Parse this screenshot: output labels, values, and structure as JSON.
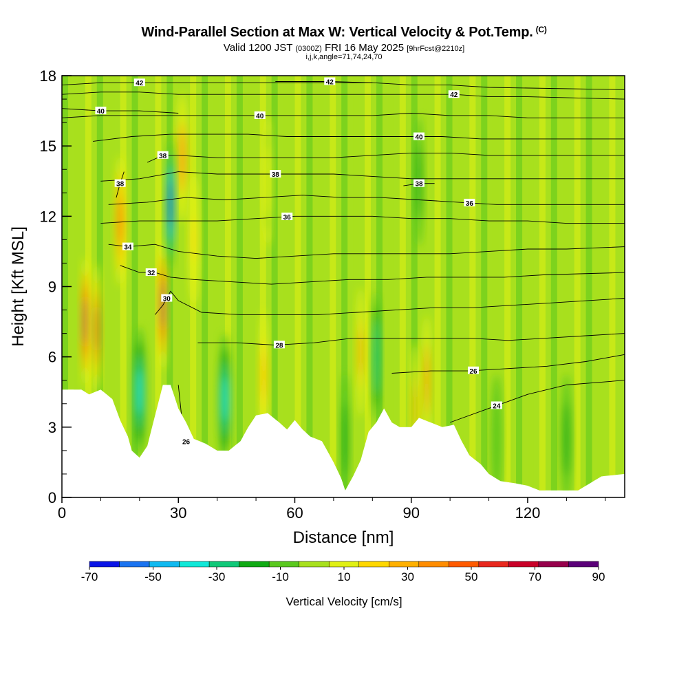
{
  "title": {
    "main": "Wind-Parallel Section at Max W: Vertical Velocity & Pot.Temp.",
    "copyright": "(C)",
    "valid_prefix": "Valid 1200 JST",
    "valid_utc": "(0300Z)",
    "valid_date": "FRI 16 May 2025",
    "forecast": "[9hrFcst@2210z]",
    "indices": "i,j,k,angle=71,74,24,70"
  },
  "chart_data": {
    "type": "heatmap",
    "xlabel": "Distance [nm]",
    "ylabel": "Height [Kft MSL]",
    "xlim": [
      0,
      145
    ],
    "ylim": [
      0,
      18
    ],
    "x_ticks": [
      0,
      30,
      60,
      90,
      120
    ],
    "y_ticks": [
      0,
      3,
      6,
      9,
      12,
      15,
      18
    ],
    "colorbar": {
      "label": "Vertical Velocity [cm/s]",
      "tick_labels": [
        "-70",
        "-50",
        "-30",
        "-10",
        "10",
        "30",
        "50",
        "70",
        "90"
      ],
      "levels": [
        -70,
        -60,
        -50,
        -40,
        -30,
        -20,
        -10,
        0,
        10,
        20,
        30,
        40,
        50,
        60,
        70,
        80,
        90
      ],
      "colors": [
        "#0a14e6",
        "#1a73f0",
        "#10b9f0",
        "#10e8d8",
        "#10c878",
        "#10aa14",
        "#5ac81e",
        "#a8e01e",
        "#e0f014",
        "#ffd700",
        "#ffb000",
        "#ff8c00",
        "#ff5a00",
        "#e8281e",
        "#c80028",
        "#96004b",
        "#5a0078"
      ]
    },
    "terrain_height_kft": [
      [
        0,
        4.6
      ],
      [
        5,
        4.6
      ],
      [
        7,
        4.4
      ],
      [
        10,
        4.6
      ],
      [
        13,
        4.2
      ],
      [
        15,
        3.3
      ],
      [
        17,
        2.6
      ],
      [
        18,
        2.0
      ],
      [
        20,
        1.7
      ],
      [
        22,
        2.2
      ],
      [
        24,
        3.5
      ],
      [
        26,
        4.8
      ],
      [
        28,
        4.8
      ],
      [
        30,
        3.8
      ],
      [
        32,
        3.2
      ],
      [
        34,
        2.5
      ],
      [
        37,
        2.3
      ],
      [
        40,
        2.0
      ],
      [
        43,
        2.0
      ],
      [
        46,
        2.4
      ],
      [
        48,
        3.0
      ],
      [
        50,
        3.5
      ],
      [
        53,
        3.6
      ],
      [
        56,
        3.2
      ],
      [
        58,
        2.9
      ],
      [
        60,
        3.3
      ],
      [
        62,
        2.9
      ],
      [
        64,
        2.6
      ],
      [
        67,
        2.4
      ],
      [
        70,
        1.5
      ],
      [
        72,
        0.8
      ],
      [
        73,
        0.3
      ],
      [
        75,
        0.9
      ],
      [
        77,
        1.6
      ],
      [
        79,
        2.8
      ],
      [
        81,
        3.2
      ],
      [
        83,
        3.8
      ],
      [
        85,
        3.2
      ],
      [
        87,
        3.0
      ],
      [
        90,
        3.0
      ],
      [
        92,
        3.4
      ],
      [
        95,
        3.2
      ],
      [
        98,
        3.0
      ],
      [
        101,
        3.1
      ],
      [
        103,
        2.4
      ],
      [
        105,
        1.8
      ],
      [
        108,
        1.4
      ],
      [
        110,
        1.0
      ],
      [
        113,
        0.7
      ],
      [
        117,
        0.6
      ],
      [
        120,
        0.5
      ],
      [
        123,
        0.3
      ],
      [
        127,
        0.3
      ],
      [
        130,
        0.3
      ],
      [
        133,
        0.3
      ],
      [
        136,
        0.6
      ],
      [
        139,
        0.9
      ],
      [
        145,
        1.0
      ]
    ],
    "velocity_cells": [
      {
        "x": 6,
        "y": 7.5,
        "w": 0.6,
        "v": 85
      },
      {
        "x": 9,
        "y": 7.2,
        "w": 0.5,
        "v": 70
      },
      {
        "x": 15,
        "y": 11.8,
        "w": 0.8,
        "v": 55
      },
      {
        "x": 26,
        "y": 8.2,
        "w": 0.6,
        "v": 80
      },
      {
        "x": 31,
        "y": 14.5,
        "w": 0.9,
        "v": 45
      },
      {
        "x": 34,
        "y": 11.0,
        "w": 0.8,
        "v": 25
      },
      {
        "x": 28,
        "y": 12.5,
        "w": 0.6,
        "v": -65
      },
      {
        "x": 20,
        "y": 4.5,
        "w": 1.0,
        "v": -40
      },
      {
        "x": 42,
        "y": 4.2,
        "w": 1.0,
        "v": -35
      },
      {
        "x": 52,
        "y": 5.2,
        "w": 0.7,
        "v": 30
      },
      {
        "x": 53,
        "y": 13.5,
        "w": 0.6,
        "v": 15
      },
      {
        "x": 73,
        "y": 2.5,
        "w": 0.5,
        "v": -15
      },
      {
        "x": 77,
        "y": 6.2,
        "w": 0.6,
        "v": 40
      },
      {
        "x": 81,
        "y": 6.0,
        "w": 0.6,
        "v": -30
      },
      {
        "x": 94,
        "y": 5.0,
        "w": 0.6,
        "v": 45
      },
      {
        "x": 91,
        "y": 3.8,
        "w": 0.5,
        "v": 30
      },
      {
        "x": 92,
        "y": 13.5,
        "w": 0.5,
        "v": -15
      },
      {
        "x": 112,
        "y": 2.5,
        "w": 0.8,
        "v": -10
      },
      {
        "x": 130,
        "y": 2.5,
        "w": 0.8,
        "v": -20
      }
    ],
    "isentropes": [
      {
        "label": "24",
        "label_x": 112,
        "points": [
          [
            100,
            3.2
          ],
          [
            110,
            3.8
          ],
          [
            120,
            4.4
          ],
          [
            130,
            4.8
          ],
          [
            145,
            5.0
          ]
        ]
      },
      {
        "label": "26",
        "label_x": 106,
        "points": [
          [
            85,
            5.3
          ],
          [
            95,
            5.4
          ],
          [
            105,
            5.4
          ],
          [
            115,
            5.5
          ],
          [
            125,
            5.6
          ],
          [
            135,
            5.8
          ],
          [
            145,
            6.1
          ]
        ]
      },
      {
        "label": "26",
        "label_x": 32,
        "points": [
          [
            30,
            4.8
          ],
          [
            31,
            3.2
          ],
          [
            32,
            2.4
          ]
        ]
      },
      {
        "label": "28",
        "label_x": 56,
        "points": [
          [
            35,
            6.6
          ],
          [
            45,
            6.6
          ],
          [
            55,
            6.5
          ],
          [
            65,
            6.6
          ],
          [
            75,
            6.8
          ],
          [
            85,
            6.8
          ],
          [
            95,
            6.8
          ],
          [
            105,
            6.8
          ],
          [
            115,
            6.7
          ],
          [
            125,
            6.8
          ],
          [
            135,
            6.9
          ],
          [
            145,
            7.0
          ]
        ]
      },
      {
        "label": "30",
        "label_x": 27,
        "points": [
          [
            24,
            7.8
          ],
          [
            26,
            8.2
          ],
          [
            28,
            8.8
          ],
          [
            30,
            8.4
          ],
          [
            36,
            7.9
          ],
          [
            46,
            7.8
          ],
          [
            56,
            7.8
          ],
          [
            66,
            7.8
          ],
          [
            76,
            7.9
          ],
          [
            86,
            8.0
          ],
          [
            96,
            8.1
          ],
          [
            106,
            8.1
          ],
          [
            116,
            8.2
          ],
          [
            126,
            8.3
          ],
          [
            145,
            8.5
          ]
        ]
      },
      {
        "label": "32",
        "label_x": 23,
        "points": [
          [
            15,
            9.9
          ],
          [
            20,
            9.6
          ],
          [
            24,
            9.6
          ],
          [
            28,
            9.4
          ],
          [
            34,
            9.3
          ],
          [
            44,
            9.2
          ],
          [
            54,
            9.1
          ],
          [
            64,
            9.2
          ],
          [
            74,
            9.3
          ],
          [
            84,
            9.3
          ],
          [
            94,
            9.4
          ],
          [
            104,
            9.4
          ],
          [
            114,
            9.4
          ],
          [
            124,
            9.5
          ],
          [
            145,
            9.6
          ]
        ]
      },
      {
        "label": "34",
        "label_x": 17,
        "points": [
          [
            12,
            10.8
          ],
          [
            17,
            10.7
          ],
          [
            24,
            10.8
          ],
          [
            30,
            10.5
          ],
          [
            40,
            10.3
          ],
          [
            50,
            10.2
          ],
          [
            60,
            10.3
          ],
          [
            70,
            10.4
          ],
          [
            80,
            10.4
          ],
          [
            90,
            10.4
          ],
          [
            100,
            10.4
          ],
          [
            110,
            10.5
          ],
          [
            120,
            10.6
          ],
          [
            130,
            10.6
          ],
          [
            145,
            10.7
          ]
        ]
      },
      {
        "label": "36",
        "label_x": 58,
        "points": [
          [
            10,
            11.7
          ],
          [
            20,
            11.8
          ],
          [
            30,
            11.8
          ],
          [
            40,
            11.8
          ],
          [
            50,
            11.9
          ],
          [
            60,
            12.0
          ],
          [
            70,
            12.0
          ],
          [
            80,
            12.0
          ],
          [
            90,
            11.9
          ],
          [
            100,
            11.9
          ],
          [
            110,
            11.8
          ],
          [
            120,
            11.8
          ],
          [
            130,
            11.7
          ],
          [
            145,
            11.7
          ]
        ]
      },
      {
        "label": "36",
        "label_x": 105,
        "points": [
          [
            12,
            12.5
          ],
          [
            22,
            12.6
          ],
          [
            32,
            12.8
          ],
          [
            42,
            12.7
          ],
          [
            52,
            12.8
          ],
          [
            62,
            12.9
          ],
          [
            72,
            12.8
          ],
          [
            82,
            12.8
          ],
          [
            92,
            12.7
          ],
          [
            102,
            12.6
          ],
          [
            112,
            12.5
          ],
          [
            122,
            12.5
          ],
          [
            145,
            12.5
          ]
        ]
      },
      {
        "label": "38",
        "label_x": 55,
        "points": [
          [
            10,
            13.5
          ],
          [
            20,
            13.6
          ],
          [
            30,
            13.9
          ],
          [
            40,
            13.8
          ],
          [
            50,
            13.8
          ],
          [
            60,
            13.8
          ],
          [
            70,
            13.8
          ],
          [
            80,
            13.7
          ],
          [
            90,
            13.6
          ],
          [
            100,
            13.6
          ],
          [
            110,
            13.6
          ],
          [
            120,
            13.6
          ],
          [
            145,
            13.6
          ]
        ]
      },
      {
        "label": "38",
        "label_x": 15,
        "points": [
          [
            14,
            12.8
          ],
          [
            15,
            13.4
          ],
          [
            16,
            13.9
          ]
        ]
      },
      {
        "label": "38",
        "label_x": 92,
        "points": [
          [
            88,
            13.3
          ],
          [
            92,
            13.4
          ],
          [
            96,
            13.4
          ]
        ]
      },
      {
        "label": "38",
        "label_x": 26,
        "points": [
          [
            22,
            14.3
          ],
          [
            26,
            14.6
          ],
          [
            30,
            14.6
          ],
          [
            40,
            14.5
          ],
          [
            50,
            14.5
          ],
          [
            60,
            14.5
          ],
          [
            70,
            14.5
          ],
          [
            80,
            14.6
          ],
          [
            90,
            14.7
          ],
          [
            100,
            14.7
          ],
          [
            110,
            14.6
          ],
          [
            120,
            14.6
          ],
          [
            145,
            14.6
          ]
        ]
      },
      {
        "label": "40",
        "label_x": 92,
        "points": [
          [
            8,
            15.2
          ],
          [
            18,
            15.4
          ],
          [
            28,
            15.5
          ],
          [
            38,
            15.5
          ],
          [
            48,
            15.5
          ],
          [
            58,
            15.4
          ],
          [
            68,
            15.4
          ],
          [
            78,
            15.4
          ],
          [
            88,
            15.4
          ],
          [
            98,
            15.4
          ],
          [
            108,
            15.3
          ],
          [
            118,
            15.3
          ],
          [
            145,
            15.3
          ]
        ]
      },
      {
        "label": "40",
        "label_x": 51,
        "points": [
          [
            0,
            16.2
          ],
          [
            10,
            16.3
          ],
          [
            20,
            16.3
          ],
          [
            30,
            16.3
          ],
          [
            40,
            16.3
          ],
          [
            51,
            16.3
          ],
          [
            60,
            16.3
          ],
          [
            70,
            16.3
          ],
          [
            80,
            16.3
          ],
          [
            90,
            16.4
          ],
          [
            100,
            16.3
          ],
          [
            110,
            16.3
          ],
          [
            120,
            16.2
          ],
          [
            145,
            16.2
          ]
        ]
      },
      {
        "label": "40",
        "label_x": 10,
        "points": [
          [
            0,
            16.6
          ],
          [
            10,
            16.5
          ],
          [
            20,
            16.5
          ],
          [
            30,
            16.4
          ]
        ]
      },
      {
        "label": "42",
        "label_x": 101,
        "points": [
          [
            0,
            17.2
          ],
          [
            10,
            17.3
          ],
          [
            20,
            17.3
          ],
          [
            30,
            17.2
          ],
          [
            40,
            17.2
          ],
          [
            50,
            17.2
          ],
          [
            60,
            17.2
          ],
          [
            70,
            17.2
          ],
          [
            80,
            17.2
          ],
          [
            90,
            17.2
          ],
          [
            101,
            17.2
          ],
          [
            110,
            17.1
          ],
          [
            120,
            17.1
          ],
          [
            145,
            17.0
          ]
        ]
      },
      {
        "label": "42",
        "label_x": 20,
        "points": [
          [
            0,
            17.6
          ],
          [
            10,
            17.7
          ],
          [
            20,
            17.7
          ],
          [
            30,
            17.7
          ],
          [
            40,
            17.7
          ],
          [
            50,
            17.7
          ],
          [
            60,
            17.7
          ],
          [
            70,
            17.7
          ],
          [
            80,
            17.7
          ],
          [
            90,
            17.6
          ],
          [
            100,
            17.6
          ],
          [
            110,
            17.5
          ],
          [
            145,
            17.4
          ]
        ]
      },
      {
        "label": "42",
        "label_x": 69,
        "points": [
          [
            55,
            17.75
          ],
          [
            69,
            17.75
          ],
          [
            80,
            17.7
          ]
        ]
      }
    ]
  }
}
